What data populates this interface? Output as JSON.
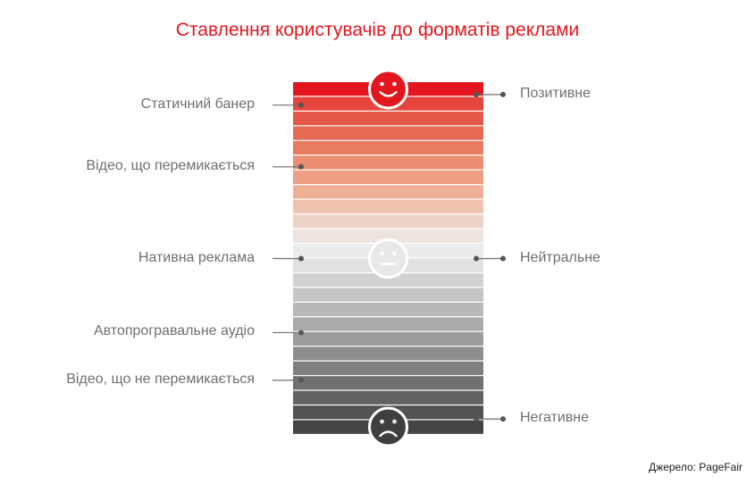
{
  "title": "Ставлення користувачів до форматів реклами",
  "source": "Джерело: PageFair",
  "scale": {
    "colors": [
      "#e3161d",
      "#e5453c",
      "#e6584a",
      "#e86a55",
      "#ea7b63",
      "#ec8c71",
      "#ee9e82",
      "#eeb096",
      "#efc2ae",
      "#eed4c8",
      "#ede3de",
      "#ebebeb",
      "#e1e1e1",
      "#d2d2d2",
      "#c5c5c5",
      "#b8b8b8",
      "#aaaaaa",
      "#9c9c9c",
      "#8e8e8e",
      "#7f7f7f",
      "#707070",
      "#626262",
      "#535353",
      "#444444"
    ]
  },
  "formats_left": [
    {
      "label": "Статичний банер",
      "position": 0.065
    },
    {
      "label": "Відео, що перемикається",
      "position": 0.24
    },
    {
      "label": "Нативна реклама",
      "position": 0.5
    },
    {
      "label": "Автопрогравальне аудіо",
      "position": 0.71
    },
    {
      "label": "Відео, що не перемикається",
      "position": 0.845
    }
  ],
  "attitudes_right": [
    {
      "label": "Позитивне",
      "position": 0.02
    },
    {
      "label": "Нейтральне",
      "position": 0.5
    },
    {
      "label": "Негативне",
      "position": 0.98
    }
  ],
  "faces": [
    {
      "name": "happy-face-icon",
      "position": 0.02,
      "color": "#e3161d"
    },
    {
      "name": "neutral-face-icon",
      "position": 0.5,
      "color": "#e8e8e8"
    },
    {
      "name": "sad-face-icon",
      "position": 0.98,
      "color": "#3f3f3f"
    }
  ]
}
